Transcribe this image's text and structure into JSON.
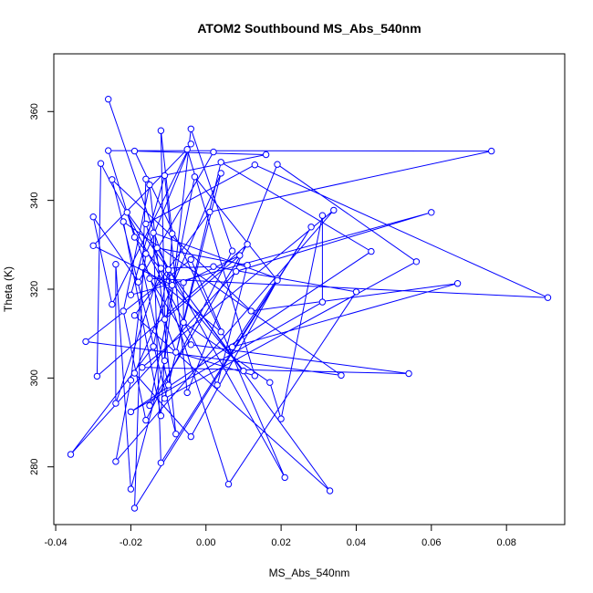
{
  "chart_data": {
    "type": "line",
    "title": "ATOM2 Southbound MS_Abs_540nm",
    "xlabel": "MS_Abs_540nm",
    "ylabel": "Theta (K)",
    "xlim": [
      -0.0405,
      0.0955
    ],
    "ylim": [
      267,
      373
    ],
    "xticks": [
      -0.04,
      -0.02,
      0.0,
      0.02,
      0.04,
      0.06,
      0.08
    ],
    "xtick_labels": [
      "-0.04",
      "-0.02",
      "0.00",
      "0.02",
      "0.04",
      "0.06",
      "0.08"
    ],
    "yticks": [
      280,
      300,
      320,
      340,
      360
    ],
    "ytick_labels": [
      "280",
      "300",
      "320",
      "340",
      "360"
    ],
    "grid": false,
    "legend": "none",
    "series_color": "#0000ff",
    "marker": "open-circle",
    "points": [
      [
        -0.026,
        362.8
      ],
      [
        -0.012,
        355.7
      ],
      [
        -0.004,
        356.1
      ],
      [
        -0.004,
        352.7
      ],
      [
        0.002,
        350.9
      ],
      [
        -0.019,
        351.1
      ],
      [
        0.076,
        351.1
      ],
      [
        0.016,
        350.3
      ],
      [
        -0.026,
        351.2
      ],
      [
        -0.005,
        351.5
      ],
      [
        -0.028,
        348.3
      ],
      [
        0.019,
        348.1
      ],
      [
        0.004,
        348.6
      ],
      [
        -0.025,
        344.7
      ],
      [
        -0.016,
        344.8
      ],
      [
        -0.011,
        345.6
      ],
      [
        -0.003,
        345.3
      ],
      [
        0.013,
        348.0
      ],
      [
        0.004,
        346.1
      ],
      [
        -0.015,
        343.5
      ],
      [
        -0.021,
        337.3
      ],
      [
        0.001,
        337.4
      ],
      [
        0.034,
        337.8
      ],
      [
        0.06,
        337.3
      ],
      [
        0.031,
        336.6
      ],
      [
        -0.03,
        336.3
      ],
      [
        0.028,
        334.0
      ],
      [
        -0.016,
        334.7
      ],
      [
        -0.022,
        335.2
      ],
      [
        -0.014,
        332.7
      ],
      [
        -0.009,
        332.5
      ],
      [
        -0.019,
        331.7
      ],
      [
        0.011,
        330.1
      ],
      [
        -0.03,
        329.8
      ],
      [
        -0.013,
        329.3
      ],
      [
        0.007,
        328.6
      ],
      [
        0.044,
        328.5
      ],
      [
        0.009,
        327.6
      ],
      [
        -0.016,
        328.0
      ],
      [
        -0.004,
        326.7
      ],
      [
        0.056,
        326.2
      ],
      [
        -0.024,
        325.6
      ],
      [
        -0.017,
        325.0
      ],
      [
        -0.012,
        324.7
      ],
      [
        0.011,
        325.4
      ],
      [
        0.002,
        325.1
      ],
      [
        -0.01,
        324.4
      ],
      [
        0.008,
        324.0
      ],
      [
        -0.015,
        322.4
      ],
      [
        0.019,
        322.4
      ],
      [
        0.019,
        322.0
      ],
      [
        -0.018,
        321.6
      ],
      [
        -0.006,
        321.5
      ],
      [
        0.067,
        321.3
      ],
      [
        -0.009,
        320.9
      ],
      [
        0.04,
        319.4
      ],
      [
        -0.02,
        318.7
      ],
      [
        0.091,
        318.1
      ],
      [
        -0.025,
        316.6
      ],
      [
        0.031,
        317.1
      ],
      [
        -0.022,
        315.1
      ],
      [
        0.012,
        315.1
      ],
      [
        -0.019,
        314.1
      ],
      [
        -0.011,
        313.2
      ],
      [
        -0.006,
        312.5
      ],
      [
        0.004,
        310.4
      ],
      [
        -0.032,
        308.2
      ],
      [
        -0.004,
        307.5
      ],
      [
        -0.014,
        307.1
      ],
      [
        0.007,
        307.0
      ],
      [
        -0.008,
        305.8
      ],
      [
        -0.011,
        303.9
      ],
      [
        -0.017,
        302.4
      ],
      [
        -0.019,
        301.1
      ],
      [
        0.036,
        300.6
      ],
      [
        -0.029,
        300.4
      ],
      [
        0.01,
        301.6
      ],
      [
        0.013,
        300.5
      ],
      [
        0.054,
        301.0
      ],
      [
        -0.02,
        299.5
      ],
      [
        -0.01,
        298.4
      ],
      [
        0.017,
        299.0
      ],
      [
        0.003,
        298.4
      ],
      [
        -0.005,
        296.7
      ],
      [
        -0.011,
        295.4
      ],
      [
        -0.015,
        293.8
      ],
      [
        -0.024,
        294.3
      ],
      [
        -0.02,
        292.4
      ],
      [
        -0.016,
        290.5
      ],
      [
        -0.012,
        291.5
      ],
      [
        0.02,
        290.8
      ],
      [
        -0.008,
        287.4
      ],
      [
        -0.004,
        286.8
      ],
      [
        -0.036,
        282.8
      ],
      [
        -0.024,
        281.2
      ],
      [
        -0.012,
        280.9
      ],
      [
        0.021,
        277.6
      ],
      [
        0.006,
        276.1
      ],
      [
        0.033,
        274.6
      ],
      [
        -0.02,
        275.0
      ],
      [
        -0.019,
        270.7
      ]
    ],
    "path_order": [
      0,
      54,
      33,
      9,
      77,
      70,
      20,
      98,
      62,
      21,
      6,
      8,
      31,
      76,
      46,
      68,
      93,
      47,
      23,
      56,
      15,
      83,
      11,
      40,
      84,
      18,
      73,
      92,
      50,
      16,
      85,
      32,
      75,
      10,
      82,
      44,
      34,
      96,
      39,
      66,
      74,
      28,
      89,
      30,
      1,
      63,
      37,
      52,
      64,
      81,
      90,
      24,
      59,
      87,
      36,
      12,
      80,
      42,
      65,
      5,
      7,
      14,
      100,
      26,
      95,
      29,
      49,
      69,
      53,
      61,
      13,
      91,
      19,
      60,
      88,
      35,
      2,
      71,
      99,
      41,
      86,
      43,
      45,
      55,
      97,
      27,
      17,
      57,
      48,
      67,
      78,
      72,
      22,
      94,
      79,
      38,
      3,
      58,
      25,
      51,
      4
    ]
  }
}
